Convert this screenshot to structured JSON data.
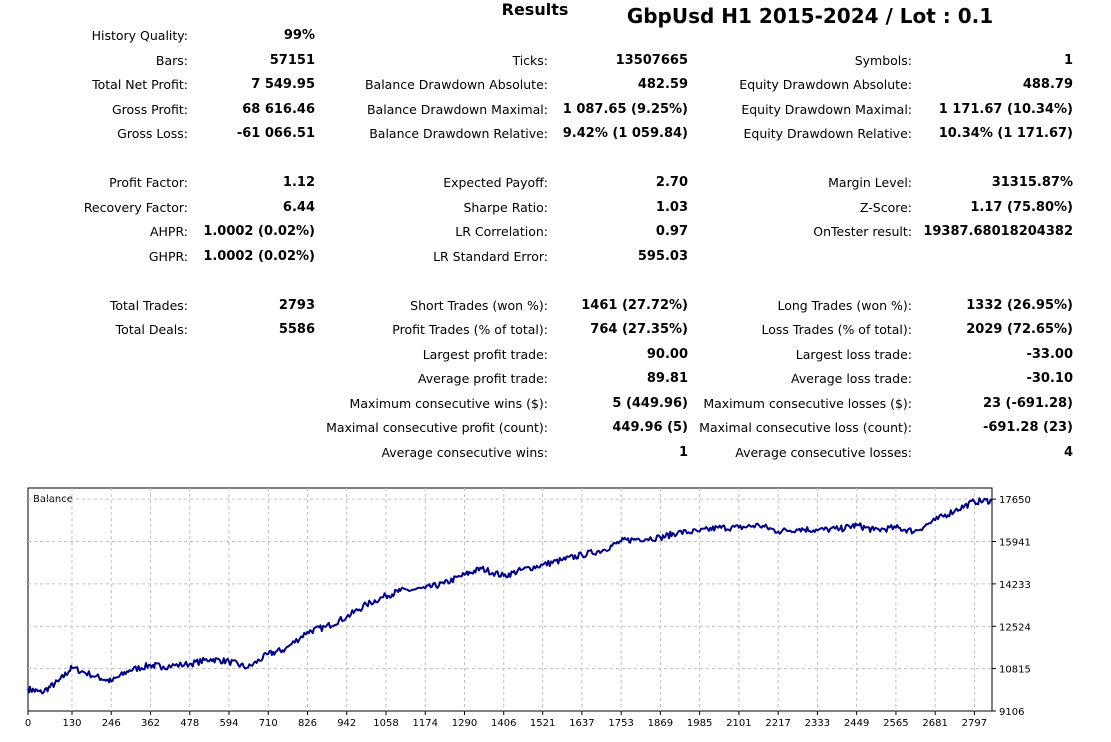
{
  "header": {
    "results_title": "Results",
    "test_title": "GbpUsd H1 2015-2024 / Lot : 0.1"
  },
  "stats": {
    "col1": [
      {
        "label": "History Quality:",
        "value": "99%"
      },
      {
        "label": "Bars:",
        "value": "57151"
      },
      {
        "label": "Total Net Profit:",
        "value": "7 549.95"
      },
      {
        "label": "Gross Profit:",
        "value": "68 616.46"
      },
      {
        "label": "Gross Loss:",
        "value": "-61 066.51"
      },
      {
        "label": "Profit Factor:",
        "value": "1.12"
      },
      {
        "label": "Recovery Factor:",
        "value": "6.44"
      },
      {
        "label": "AHPR:",
        "value": "1.0002 (0.02%)"
      },
      {
        "label": "GHPR:",
        "value": "1.0002 (0.02%)"
      },
      {
        "label": "Total Trades:",
        "value": "2793"
      },
      {
        "label": "Total Deals:",
        "value": "5586"
      }
    ],
    "col2": [
      {
        "label": "Ticks:",
        "value": "13507665"
      },
      {
        "label": "Balance Drawdown Absolute:",
        "value": "482.59"
      },
      {
        "label": "Balance Drawdown Maximal:",
        "value": "1 087.65 (9.25%)"
      },
      {
        "label": "Balance Drawdown Relative:",
        "value": "9.42% (1 059.84)"
      },
      {
        "label": "Expected Payoff:",
        "value": "2.70"
      },
      {
        "label": "Sharpe Ratio:",
        "value": "1.03"
      },
      {
        "label": "LR Correlation:",
        "value": "0.97"
      },
      {
        "label": "LR Standard Error:",
        "value": "595.03"
      },
      {
        "label": "Short Trades (won %):",
        "value": "1461 (27.72%)"
      },
      {
        "label": "Profit Trades (% of total):",
        "value": "764 (27.35%)"
      },
      {
        "label": "Largest profit trade:",
        "value": "90.00"
      },
      {
        "label": "Average profit trade:",
        "value": "89.81"
      },
      {
        "label": "Maximum consecutive wins ($):",
        "value": "5 (449.96)"
      },
      {
        "label": "Maximal consecutive profit (count):",
        "value": "449.96 (5)"
      },
      {
        "label": "Average consecutive wins:",
        "value": "1"
      }
    ],
    "col3": [
      {
        "label": "Symbols:",
        "value": "1"
      },
      {
        "label": "Equity Drawdown Absolute:",
        "value": "488.79"
      },
      {
        "label": "Equity Drawdown Maximal:",
        "value": "1 171.67 (10.34%)"
      },
      {
        "label": "Equity Drawdown Relative:",
        "value": "10.34% (1 171.67)"
      },
      {
        "label": "Margin Level:",
        "value": "31315.87%"
      },
      {
        "label": "Z-Score:",
        "value": "1.17 (75.80%)"
      },
      {
        "label": "OnTester result:",
        "value": "19387.68018204382"
      },
      {
        "label": "Long Trades (won %):",
        "value": "1332 (26.95%)"
      },
      {
        "label": "Loss Trades (% of total):",
        "value": "2029 (72.65%)"
      },
      {
        "label": "Largest loss trade:",
        "value": "-33.00"
      },
      {
        "label": "Average loss trade:",
        "value": "-30.10"
      },
      {
        "label": "Maximum consecutive losses ($):",
        "value": "23 (-691.28)"
      },
      {
        "label": "Maximal consecutive loss (count):",
        "value": "-691.28 (23)"
      },
      {
        "label": "Average consecutive losses:",
        "value": "4"
      }
    ]
  },
  "chart_data": {
    "type": "line",
    "title": "Balance",
    "line_color": "#00008b",
    "grid": true,
    "xlim": [
      0,
      2849
    ],
    "ylim": [
      9106,
      18100
    ],
    "x_ticks": [
      0,
      130,
      246,
      362,
      478,
      594,
      710,
      826,
      942,
      1058,
      1174,
      1290,
      1406,
      1521,
      1637,
      1753,
      1869,
      1985,
      2101,
      2217,
      2333,
      2449,
      2565,
      2681,
      2797
    ],
    "y_ticks": [
      9106,
      10815,
      12524,
      14233,
      15941,
      17650
    ],
    "series": [
      {
        "name": "Balance",
        "x": [
          0,
          40,
          90,
          130,
          200,
          246,
          300,
          362,
          400,
          478,
          540,
          594,
          650,
          710,
          760,
          826,
          880,
          942,
          1000,
          1058,
          1100,
          1174,
          1230,
          1290,
          1340,
          1406,
          1460,
          1521,
          1580,
          1637,
          1700,
          1753,
          1800,
          1869,
          1920,
          1985,
          2040,
          2101,
          2160,
          2217,
          2280,
          2333,
          2400,
          2449,
          2500,
          2565,
          2620,
          2681,
          2740,
          2797,
          2849
        ],
        "y": [
          10000,
          9850,
          10300,
          10850,
          10500,
          10300,
          10750,
          10950,
          10900,
          11000,
          11200,
          11100,
          10850,
          11400,
          11600,
          12300,
          12500,
          12900,
          13400,
          13750,
          13950,
          14050,
          14250,
          14600,
          14850,
          14550,
          14800,
          15000,
          15200,
          15400,
          15600,
          15950,
          16050,
          16100,
          16300,
          16350,
          16500,
          16500,
          16600,
          16350,
          16450,
          16400,
          16450,
          16600,
          16400,
          16500,
          16350,
          16800,
          17200,
          17550,
          17600
        ]
      }
    ]
  }
}
